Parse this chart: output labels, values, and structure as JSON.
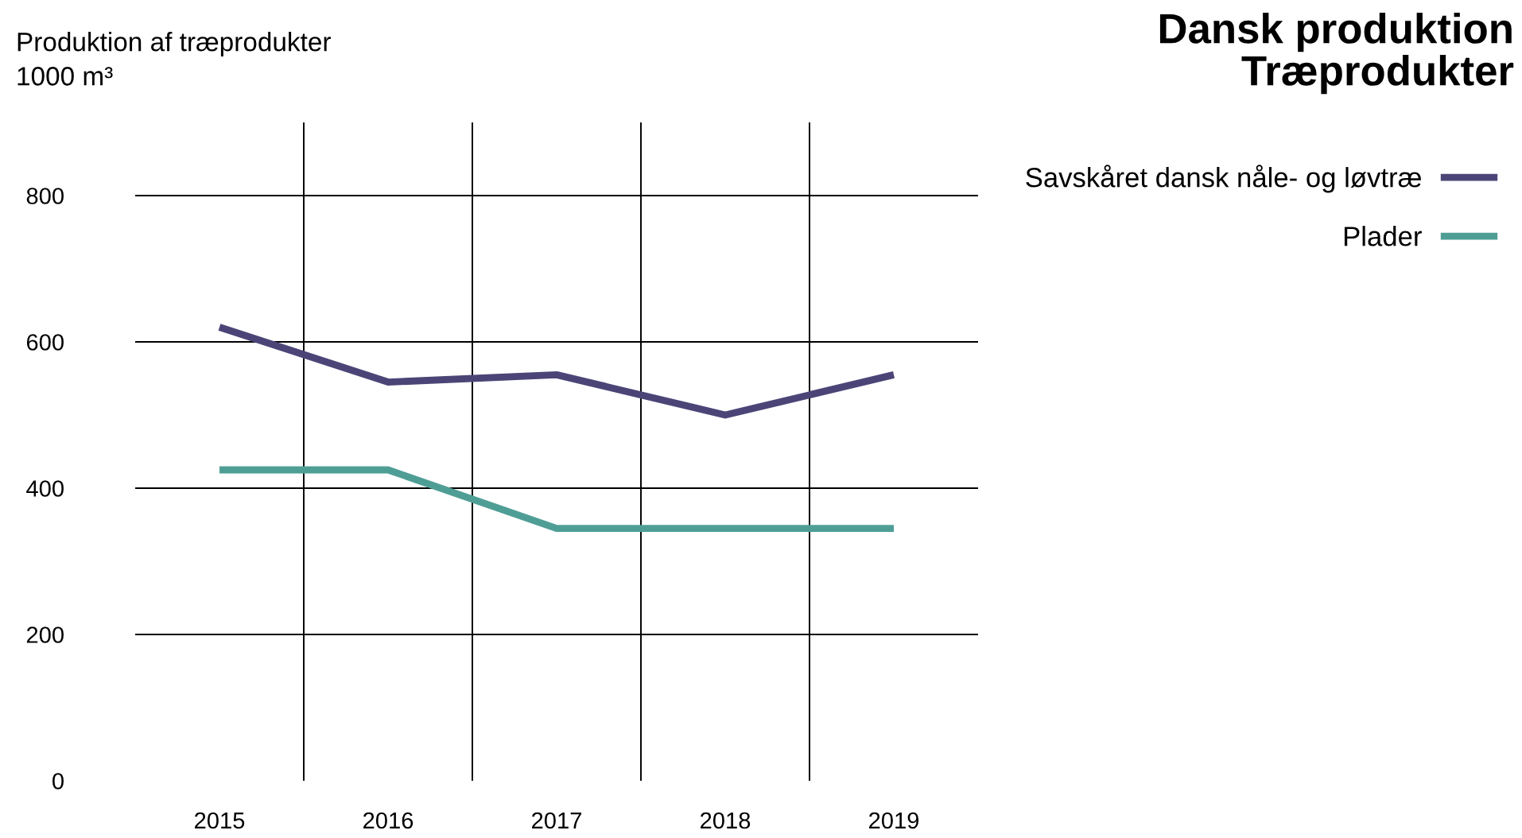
{
  "chart_data": {
    "type": "line",
    "title": "Dansk produktion\nTræprodukter",
    "ylabel": "Produktion af træprodukter\n1000 m³",
    "categories": [
      "2015",
      "2016",
      "2017",
      "2018",
      "2019"
    ],
    "series": [
      {
        "name": "Savskåret dansk nåle- og løvtræ",
        "color": "#4b4577",
        "values": [
          620,
          545,
          555,
          500,
          555
        ]
      },
      {
        "name": "Plader",
        "color": "#4f9e96",
        "values": [
          425,
          425,
          345,
          345,
          345
        ]
      }
    ],
    "ylim": [
      0,
      900
    ],
    "yticks": [
      0,
      200,
      400,
      600,
      800
    ],
    "grid": true,
    "legend": "top right",
    "marker": "none",
    "line_style": "solid"
  }
}
